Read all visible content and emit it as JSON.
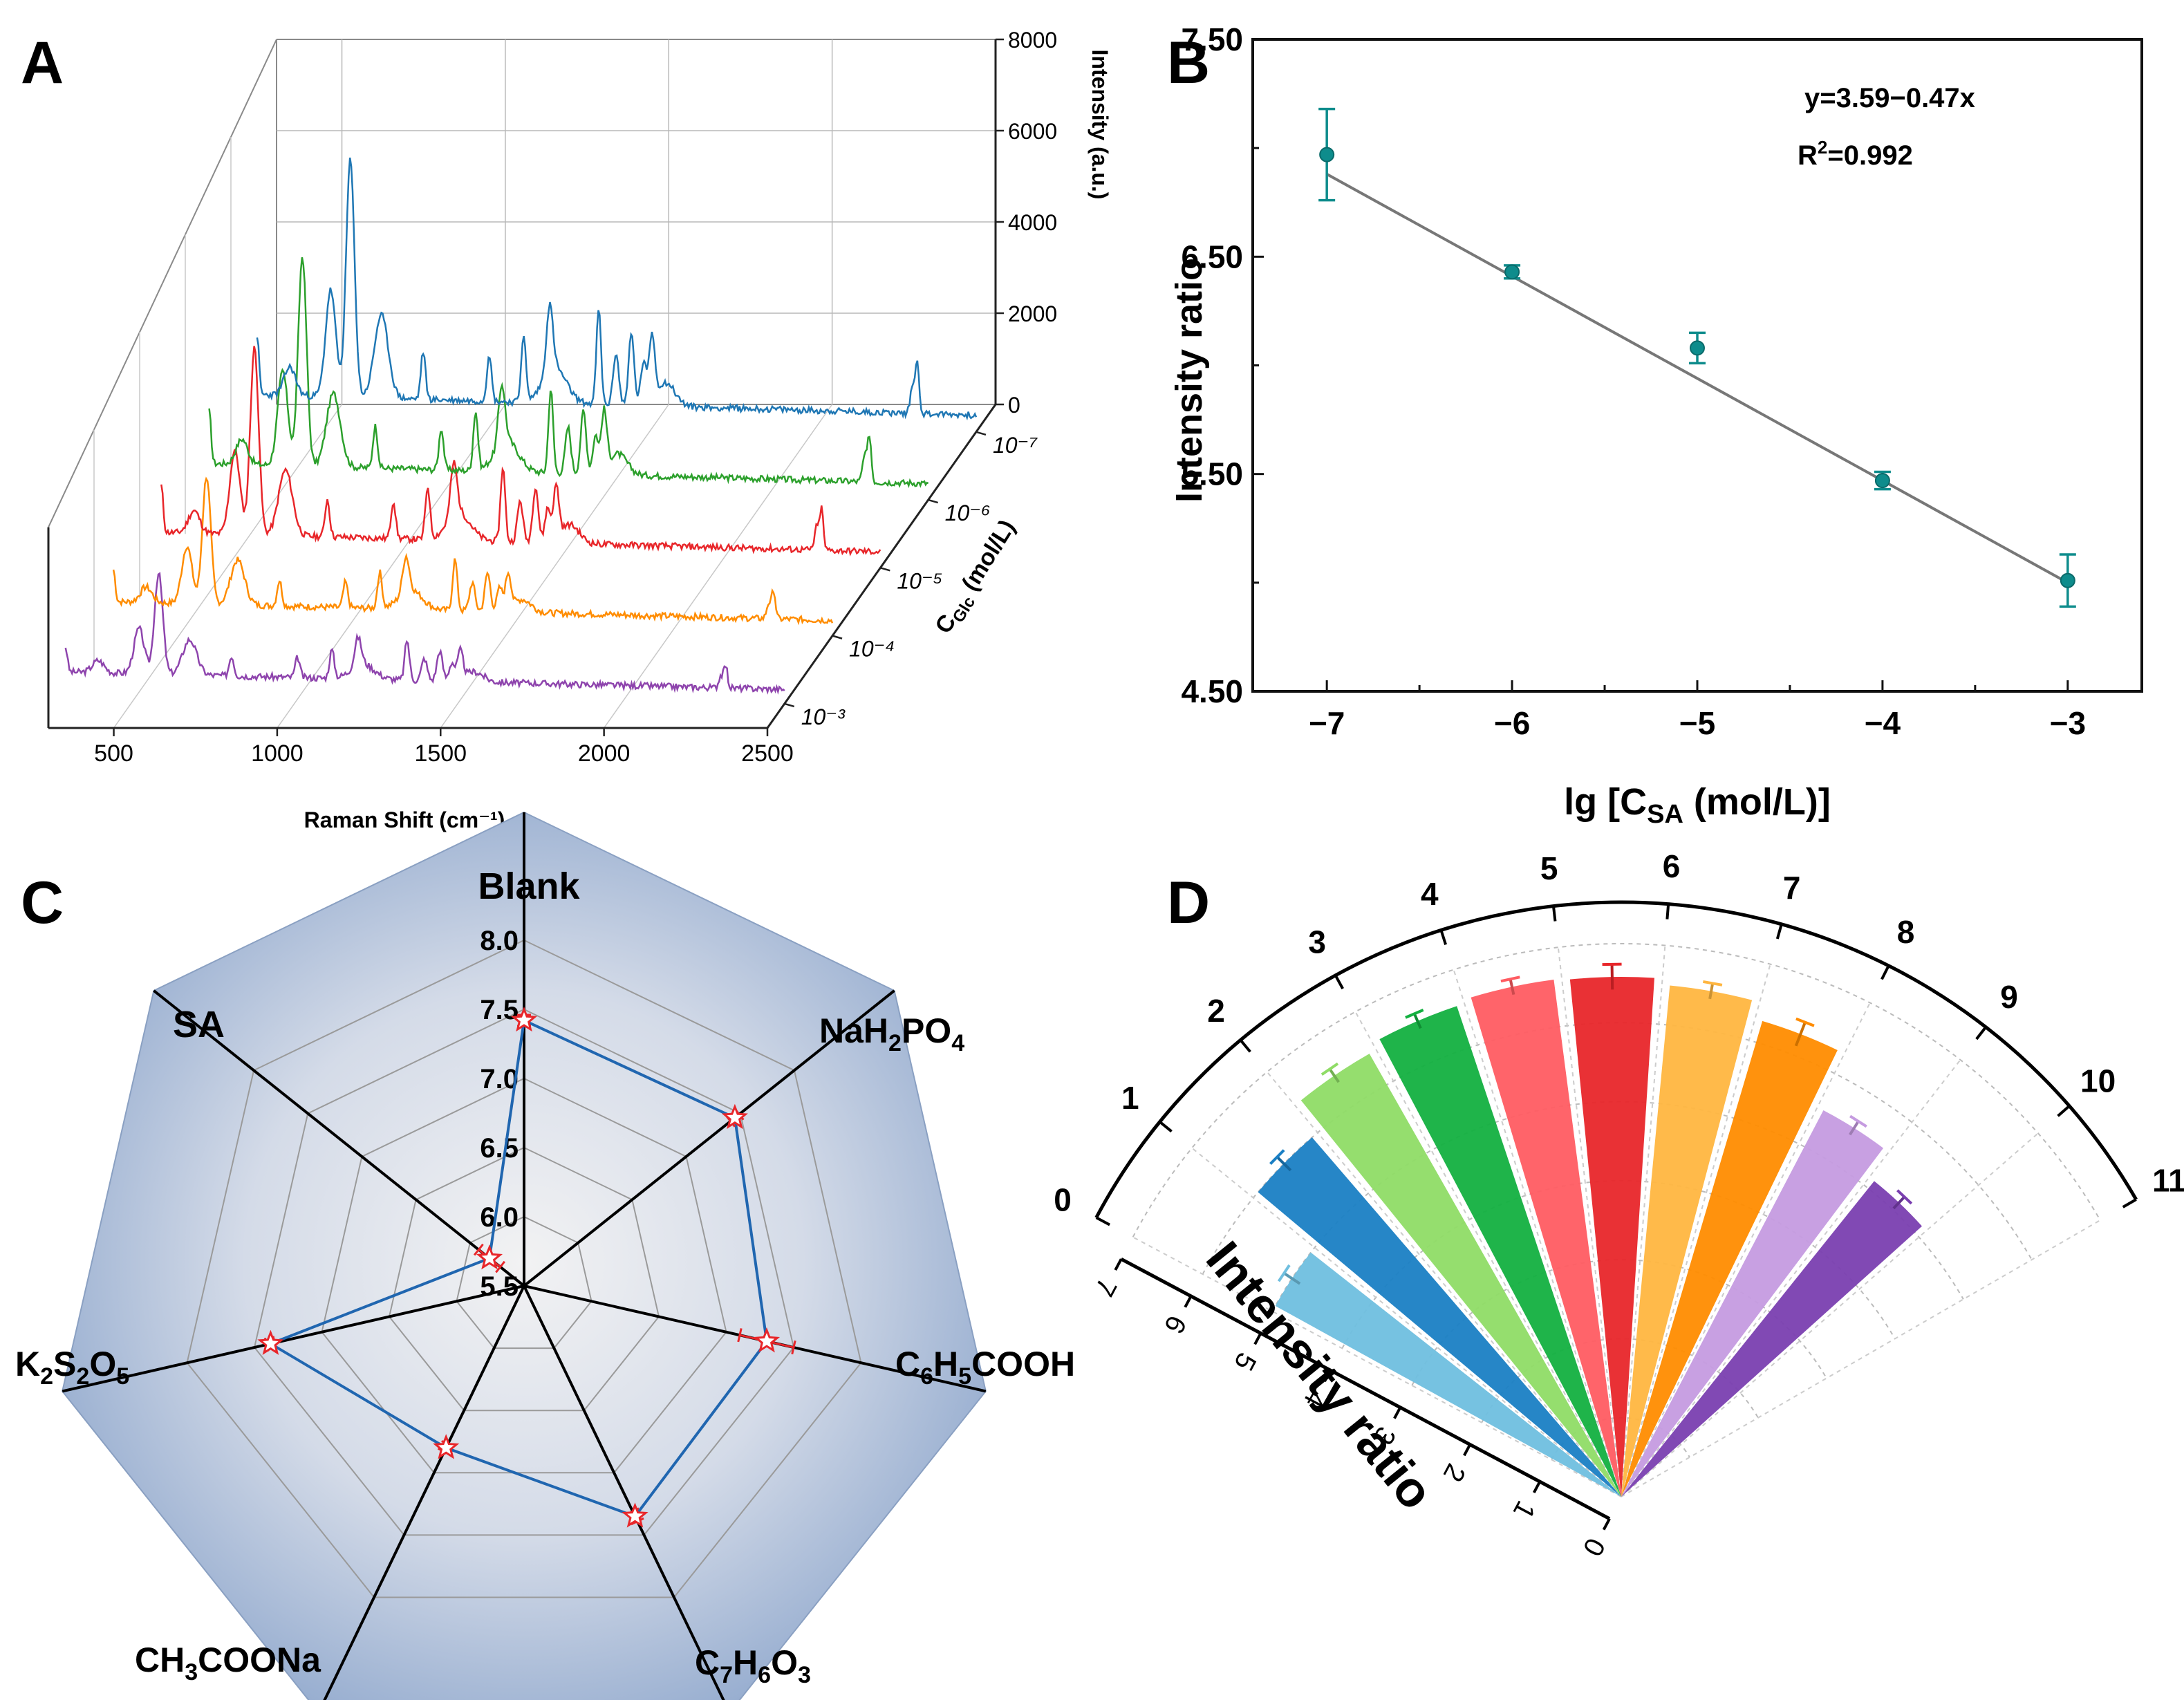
{
  "panels": {
    "a": "A",
    "b": "B",
    "c": "C",
    "d": "D"
  },
  "colors": {
    "blue": "#1f77b4",
    "green": "#2ca02c",
    "red": "#e8262a",
    "orange": "#ff8c00",
    "purple": "#8e44ad",
    "teal": "#0e8c8c",
    "radar_line": "#2066b0",
    "radar_marker": "#e8262a"
  },
  "chart_data": [
    {
      "id": "A",
      "type": "line",
      "title": "",
      "xlabel": "Raman Shift (cm⁻¹)",
      "ylabel": "Intensity (a.u.)",
      "zlabel": "C_Glc (mol/L)",
      "zlabel_main": "C",
      "zlabel_sub": "Glc",
      "zlabel_rest": " (mol/L)",
      "x_ticks": [
        "500",
        "1000",
        "1500",
        "2000",
        "2500"
      ],
      "xlim": [
        300,
        2500
      ],
      "y_ticks": [
        "0",
        "2000",
        "4000",
        "6000",
        "8000"
      ],
      "ylim": [
        0,
        8000
      ],
      "z_ticks": [
        "10⁻³",
        "10⁻⁴",
        "10⁻⁵",
        "10⁻⁶",
        "10⁻⁷"
      ],
      "peaks": [
        {
          "pos": 300,
          "h": 0.25,
          "w": 8
        },
        {
          "pos": 400,
          "h": 0.12,
          "w": 25
        },
        {
          "pos": 525,
          "h": 0.45,
          "w": 22
        },
        {
          "pos": 585,
          "h": 1.0,
          "w": 18
        },
        {
          "pos": 680,
          "h": 0.35,
          "w": 30
        },
        {
          "pos": 808,
          "h": 0.2,
          "w": 10
        },
        {
          "pos": 1010,
          "h": 0.2,
          "w": 10
        },
        {
          "pos": 1115,
          "h": 0.28,
          "w": 10
        },
        {
          "pos": 1195,
          "h": 0.28,
          "w": 14
        },
        {
          "pos": 1210,
          "h": 0.15,
          "w": 50
        },
        {
          "pos": 1345,
          "h": 0.4,
          "w": 10
        },
        {
          "pos": 1398,
          "h": 0.22,
          "w": 12
        },
        {
          "pos": 1445,
          "h": 0.3,
          "w": 12
        },
        {
          "pos": 1482,
          "h": 0.18,
          "w": 12
        },
        {
          "pos": 1508,
          "h": 0.28,
          "w": 12
        },
        {
          "pos": 1550,
          "h": 0.1,
          "w": 40
        },
        {
          "pos": 2305,
          "h": 0.12,
          "w": 9
        },
        {
          "pos": 2320,
          "h": 0.22,
          "w": 8
        }
      ],
      "series": [
        {
          "name": "10⁻³",
          "amplitude": 2200,
          "baseline": 700,
          "color": "purple",
          "seed": 3
        },
        {
          "name": "10⁻⁴",
          "amplitude": 2800,
          "baseline": 750,
          "color": "orange",
          "seed": 7
        },
        {
          "name": "10⁻⁵",
          "amplitude": 4100,
          "baseline": 780,
          "color": "red",
          "seed": 11
        },
        {
          "name": "10⁻⁶",
          "amplitude": 4600,
          "baseline": 800,
          "color": "green",
          "seed": 17
        },
        {
          "name": "10⁻⁷",
          "amplitude": 5200,
          "baseline": 820,
          "color": "blue",
          "seed": 23
        }
      ]
    },
    {
      "id": "B",
      "type": "scatter",
      "title": "",
      "xlabel": "lg [C_SA (mol/L)]",
      "xlabel_pre": "lg [C",
      "xlabel_sub": "SA",
      "xlabel_post": " (mol/L)]",
      "ylabel": "Intensity ratio",
      "x": [
        -7,
        -6,
        -5,
        -4,
        -3
      ],
      "y": [
        6.97,
        6.43,
        6.08,
        5.47,
        5.01
      ],
      "yerr": [
        0.21,
        0.03,
        0.07,
        0.04,
        0.12
      ],
      "xlim": [
        -7.4,
        -2.6
      ],
      "ylim": [
        4.5,
        7.5
      ],
      "x_ticks": [
        "−7",
        "−6",
        "−5",
        "−4",
        "−3"
      ],
      "y_ticks": [
        "4.50",
        "5.50",
        "6.50",
        "7.50"
      ],
      "fit": {
        "intercept": 3.59,
        "slope": -0.47
      },
      "fit_label": "y=3.59−0.47x",
      "r2_label_pre": "R",
      "r2_label_sup": "2",
      "r2_label_post": "=0.992"
    },
    {
      "id": "C",
      "type": "radar",
      "title": "",
      "rmin": 5.5,
      "rmax": 8.0,
      "r_ticks": [
        "5.5",
        "6.0",
        "6.5",
        "7.0",
        "7.5",
        "8.0"
      ],
      "categories": [
        {
          "name": "Blank",
          "value": 7.42,
          "err": 0.04
        },
        {
          "name": "NaH2PO4",
          "value": 7.45,
          "err": 0.04
        },
        {
          "name": "C6H5COOH",
          "value": 7.3,
          "err": 0.2
        },
        {
          "name": "C7H6O3",
          "value": 7.35,
          "err": 0.04
        },
        {
          "name": "CH3COONa",
          "value": 6.8,
          "err": 0.03
        },
        {
          "name": "K2S2O5",
          "value": 7.38,
          "err": 0.03
        },
        {
          "name": "SA",
          "value": 5.82,
          "err": 0.1
        }
      ],
      "labels": {
        "blank": "Blank",
        "nah2po4": [
          "NaH",
          "2",
          "PO",
          "4"
        ],
        "c6h5cooh": [
          "C",
          "6",
          "H",
          "5",
          "COOH"
        ],
        "c7h6o3": [
          "C",
          "7",
          "H",
          "6",
          "O",
          "3"
        ],
        "ch3coona": [
          "CH",
          "3",
          "COONa"
        ],
        "k2s2o5": [
          "K",
          "2",
          "S",
          "2",
          "O",
          "5"
        ],
        "sa": "SA"
      }
    },
    {
      "id": "D",
      "type": "bar",
      "subtype": "polar",
      "title": "",
      "ylabel": "Intensity ratio",
      "rlim": [
        0,
        7
      ],
      "r_ticks": [
        "0",
        "1",
        "2",
        "3",
        "4",
        "5",
        "6",
        "7"
      ],
      "angle_ticks": [
        "0",
        "1",
        "2",
        "3",
        "4",
        "5",
        "6",
        "7",
        "8",
        "9",
        "10",
        "11"
      ],
      "bars": [
        {
          "pos": 0.5,
          "value": 5.0,
          "err": 0.12,
          "color": "#6fbfdf"
        },
        {
          "pos": 1.5,
          "value": 6.0,
          "err": 0.12,
          "color": "#1a7fc4"
        },
        {
          "pos": 2.5,
          "value": 6.45,
          "err": 0.1,
          "color": "#8fdc66"
        },
        {
          "pos": 3.5,
          "value": 6.55,
          "err": 0.1,
          "color": "#13b040"
        },
        {
          "pos": 4.5,
          "value": 6.6,
          "err": 0.1,
          "color": "#ff5c62"
        },
        {
          "pos": 5.5,
          "value": 6.58,
          "err": 0.16,
          "color": "#e8262a"
        },
        {
          "pos": 6.5,
          "value": 6.5,
          "err": 0.1,
          "color": "#ffb640"
        },
        {
          "pos": 7.5,
          "value": 6.28,
          "err": 0.16,
          "color": "#ff8c00"
        },
        {
          "pos": 8.5,
          "value": 5.52,
          "err": 0.1,
          "color": "#c59be0"
        },
        {
          "pos": 9.5,
          "value": 5.12,
          "err": 0.1,
          "color": "#7a3fb0"
        }
      ]
    }
  ]
}
